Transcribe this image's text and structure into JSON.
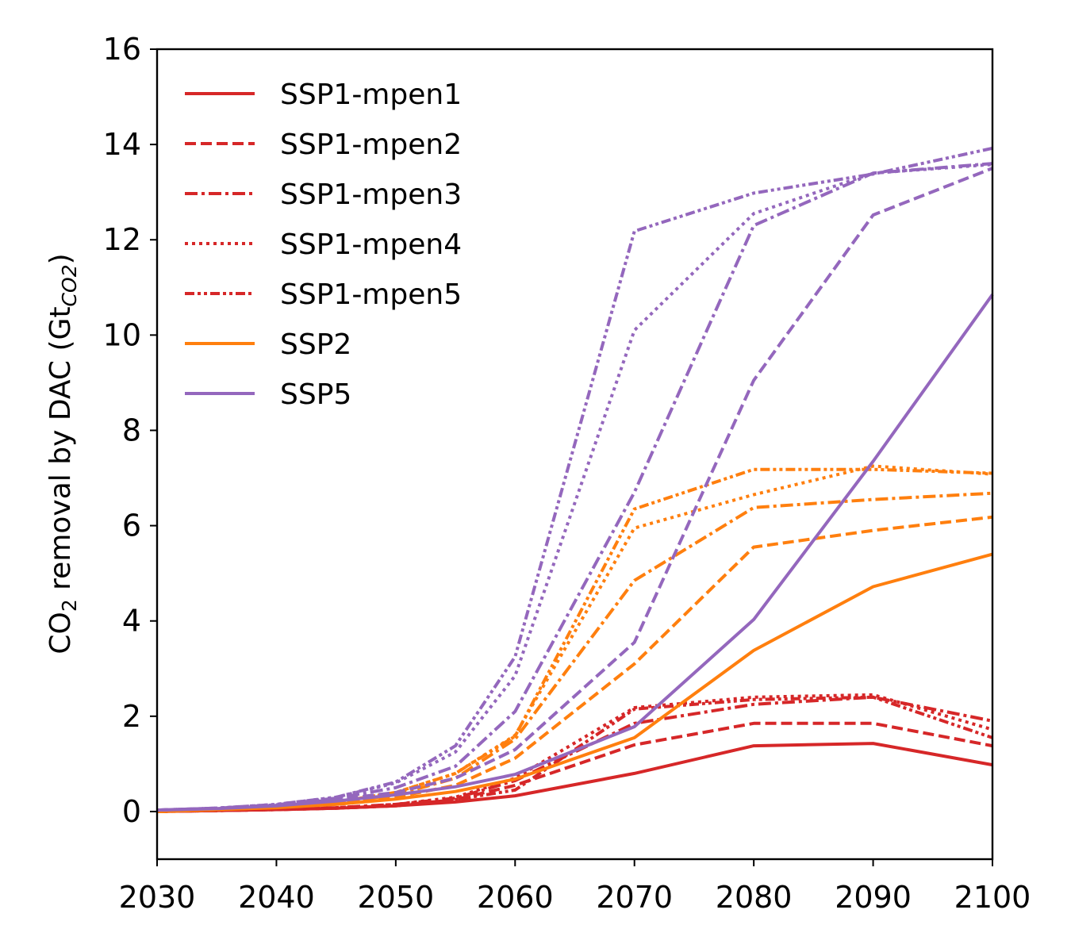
{
  "chart_data": {
    "type": "line",
    "title": "",
    "xlabel": "",
    "ylabel": {
      "main": "CO",
      "sub1": "2",
      "mid": " removal by DAC (Gt",
      "sub2": "CO2",
      "end": ")"
    },
    "xlim": [
      2030,
      2100
    ],
    "ylim": [
      -1,
      16
    ],
    "x_ticks": [
      2030,
      2040,
      2050,
      2060,
      2070,
      2080,
      2090,
      2100
    ],
    "y_ticks": [
      0,
      2,
      4,
      6,
      8,
      10,
      12,
      14,
      16
    ],
    "grid": false,
    "legend_position": "upper-left",
    "colors": {
      "SSP1": "#d62728",
      "SSP2": "#ff7f0e",
      "SSP5": "#9467bd"
    },
    "legend": [
      {
        "name": "SSP1-mpen1",
        "color": "#d62728",
        "style": "solid"
      },
      {
        "name": "SSP1-mpen2",
        "color": "#d62728",
        "style": "dashed"
      },
      {
        "name": "SSP1-mpen3",
        "color": "#d62728",
        "style": "dashdot"
      },
      {
        "name": "SSP1-mpen4",
        "color": "#d62728",
        "style": "dotted"
      },
      {
        "name": "SSP1-mpen5",
        "color": "#d62728",
        "style": "dashdotdot"
      },
      {
        "name": "SSP2",
        "color": "#ff7f0e",
        "style": "solid"
      },
      {
        "name": "SSP5",
        "color": "#9467bd",
        "style": "solid"
      }
    ],
    "x": [
      2030,
      2035,
      2040,
      2045,
      2050,
      2055,
      2060,
      2070,
      2080,
      2090,
      2100
    ],
    "series": [
      {
        "scenario": "SSP1",
        "style": "solid",
        "values": [
          0.0,
          0.02,
          0.04,
          0.07,
          0.12,
          0.2,
          0.33,
          0.8,
          1.38,
          1.43,
          0.98
        ]
      },
      {
        "scenario": "SSP1",
        "style": "dashed",
        "values": [
          0.0,
          0.02,
          0.04,
          0.07,
          0.12,
          0.25,
          0.55,
          1.4,
          1.85,
          1.85,
          1.38
        ]
      },
      {
        "scenario": "SSP1",
        "style": "dashdot",
        "values": [
          0.0,
          0.02,
          0.04,
          0.08,
          0.15,
          0.28,
          0.65,
          1.85,
          2.25,
          2.4,
          1.9
        ]
      },
      {
        "scenario": "SSP1",
        "style": "dotted",
        "values": [
          0.0,
          0.02,
          0.04,
          0.08,
          0.15,
          0.3,
          0.7,
          2.18,
          2.4,
          2.45,
          1.72
        ]
      },
      {
        "scenario": "SSP1",
        "style": "dashdotdot",
        "values": [
          0.0,
          0.02,
          0.04,
          0.07,
          0.12,
          0.25,
          0.45,
          2.15,
          2.35,
          2.4,
          1.55
        ]
      },
      {
        "scenario": "SSP2",
        "style": "solid",
        "values": [
          0.0,
          0.04,
          0.08,
          0.15,
          0.26,
          0.42,
          0.68,
          1.55,
          3.38,
          4.72,
          5.4
        ]
      },
      {
        "scenario": "SSP2",
        "style": "dashed",
        "values": [
          0.0,
          0.04,
          0.09,
          0.17,
          0.3,
          0.55,
          1.12,
          3.1,
          5.55,
          5.9,
          6.18
        ]
      },
      {
        "scenario": "SSP2",
        "style": "dashdot",
        "values": [
          0.0,
          0.04,
          0.09,
          0.18,
          0.35,
          0.7,
          1.52,
          4.85,
          6.38,
          6.55,
          6.68
        ]
      },
      {
        "scenario": "SSP2",
        "style": "dotted",
        "values": [
          0.0,
          0.04,
          0.1,
          0.2,
          0.4,
          0.8,
          1.6,
          5.95,
          6.65,
          7.25,
          7.08
        ]
      },
      {
        "scenario": "SSP2",
        "style": "dashdotdot",
        "values": [
          0.0,
          0.04,
          0.1,
          0.2,
          0.4,
          0.8,
          1.58,
          6.35,
          7.18,
          7.18,
          7.1
        ]
      },
      {
        "scenario": "SSP5",
        "style": "solid",
        "values": [
          0.03,
          0.06,
          0.12,
          0.22,
          0.35,
          0.52,
          0.78,
          1.78,
          4.03,
          7.35,
          10.85
        ]
      },
      {
        "scenario": "SSP5",
        "style": "dashed",
        "values": [
          0.03,
          0.07,
          0.13,
          0.25,
          0.4,
          0.7,
          1.3,
          3.55,
          9.05,
          12.52,
          13.5
        ]
      },
      {
        "scenario": "SSP5",
        "style": "dashdot",
        "values": [
          0.03,
          0.07,
          0.14,
          0.28,
          0.5,
          0.95,
          2.1,
          6.7,
          12.3,
          13.4,
          13.6
        ]
      },
      {
        "scenario": "SSP5",
        "style": "dotted",
        "values": [
          0.03,
          0.07,
          0.15,
          0.3,
          0.6,
          1.25,
          2.85,
          10.1,
          12.55,
          13.4,
          13.58
        ]
      },
      {
        "scenario": "SSP5",
        "style": "dashdotdot",
        "values": [
          0.03,
          0.07,
          0.15,
          0.3,
          0.62,
          1.38,
          3.25,
          12.18,
          12.98,
          13.38,
          13.92
        ]
      }
    ]
  }
}
